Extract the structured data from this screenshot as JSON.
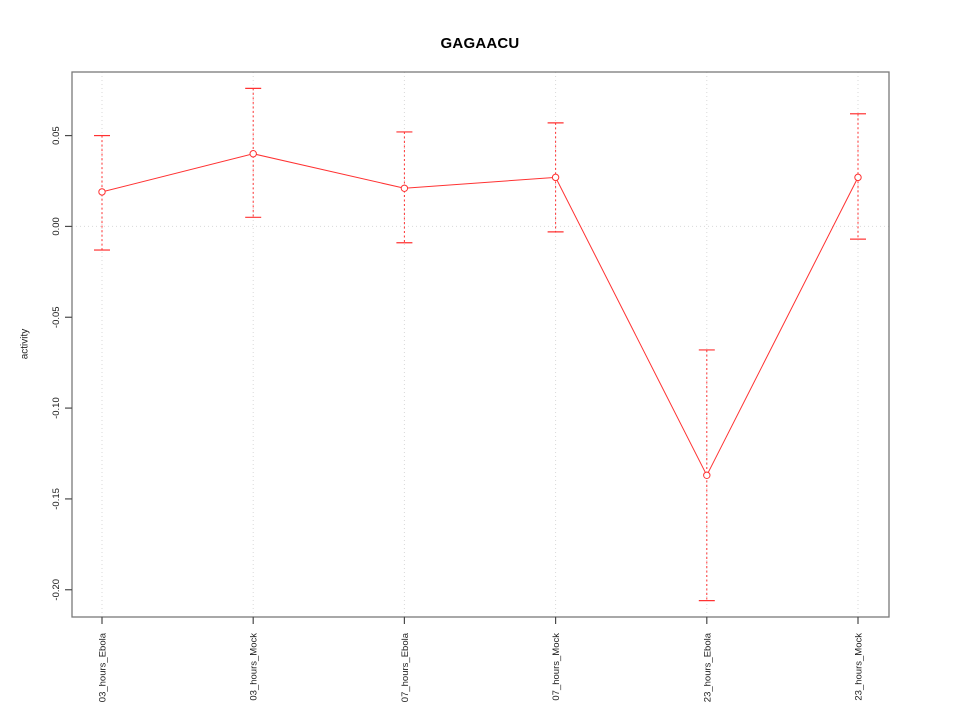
{
  "page": {
    "background": "#ffffff"
  },
  "chart_data": {
    "type": "line",
    "title": "GAGAACU",
    "xlabel": "",
    "ylabel": "activity",
    "categories": [
      "03_hours_Ebola",
      "03_hours_Mock",
      "07_hours_Ebola",
      "07_hours_Mock",
      "23_hours_Ebola",
      "23_hours_Mock"
    ],
    "series": [
      {
        "name": "activity",
        "color": "#ff3232",
        "marker": "open-circle",
        "values": [
          0.019,
          0.04,
          0.021,
          0.027,
          -0.137,
          0.027
        ],
        "error_high": [
          0.05,
          0.076,
          0.052,
          0.057,
          -0.068,
          0.062
        ],
        "error_low": [
          -0.013,
          0.005,
          -0.009,
          -0.003,
          -0.206,
          -0.007
        ]
      }
    ],
    "ylim": [
      -0.215,
      0.085
    ],
    "yticks": [
      0.05,
      0.0,
      -0.05,
      -0.1,
      -0.15,
      -0.2
    ],
    "ytick_labels": [
      "0.05",
      "0.00",
      "-0.05",
      "-0.10",
      "-0.15",
      "-0.20"
    ],
    "grid": {
      "vertical_at_categories": true,
      "horizontal_at_zero": true,
      "style": "dotted",
      "color": "#d9d9d9"
    },
    "axis": {
      "box_color": "#7a7a7a",
      "tick_color": "#4a4a4a",
      "label_color": "#1c1c1c"
    },
    "legend": null
  }
}
